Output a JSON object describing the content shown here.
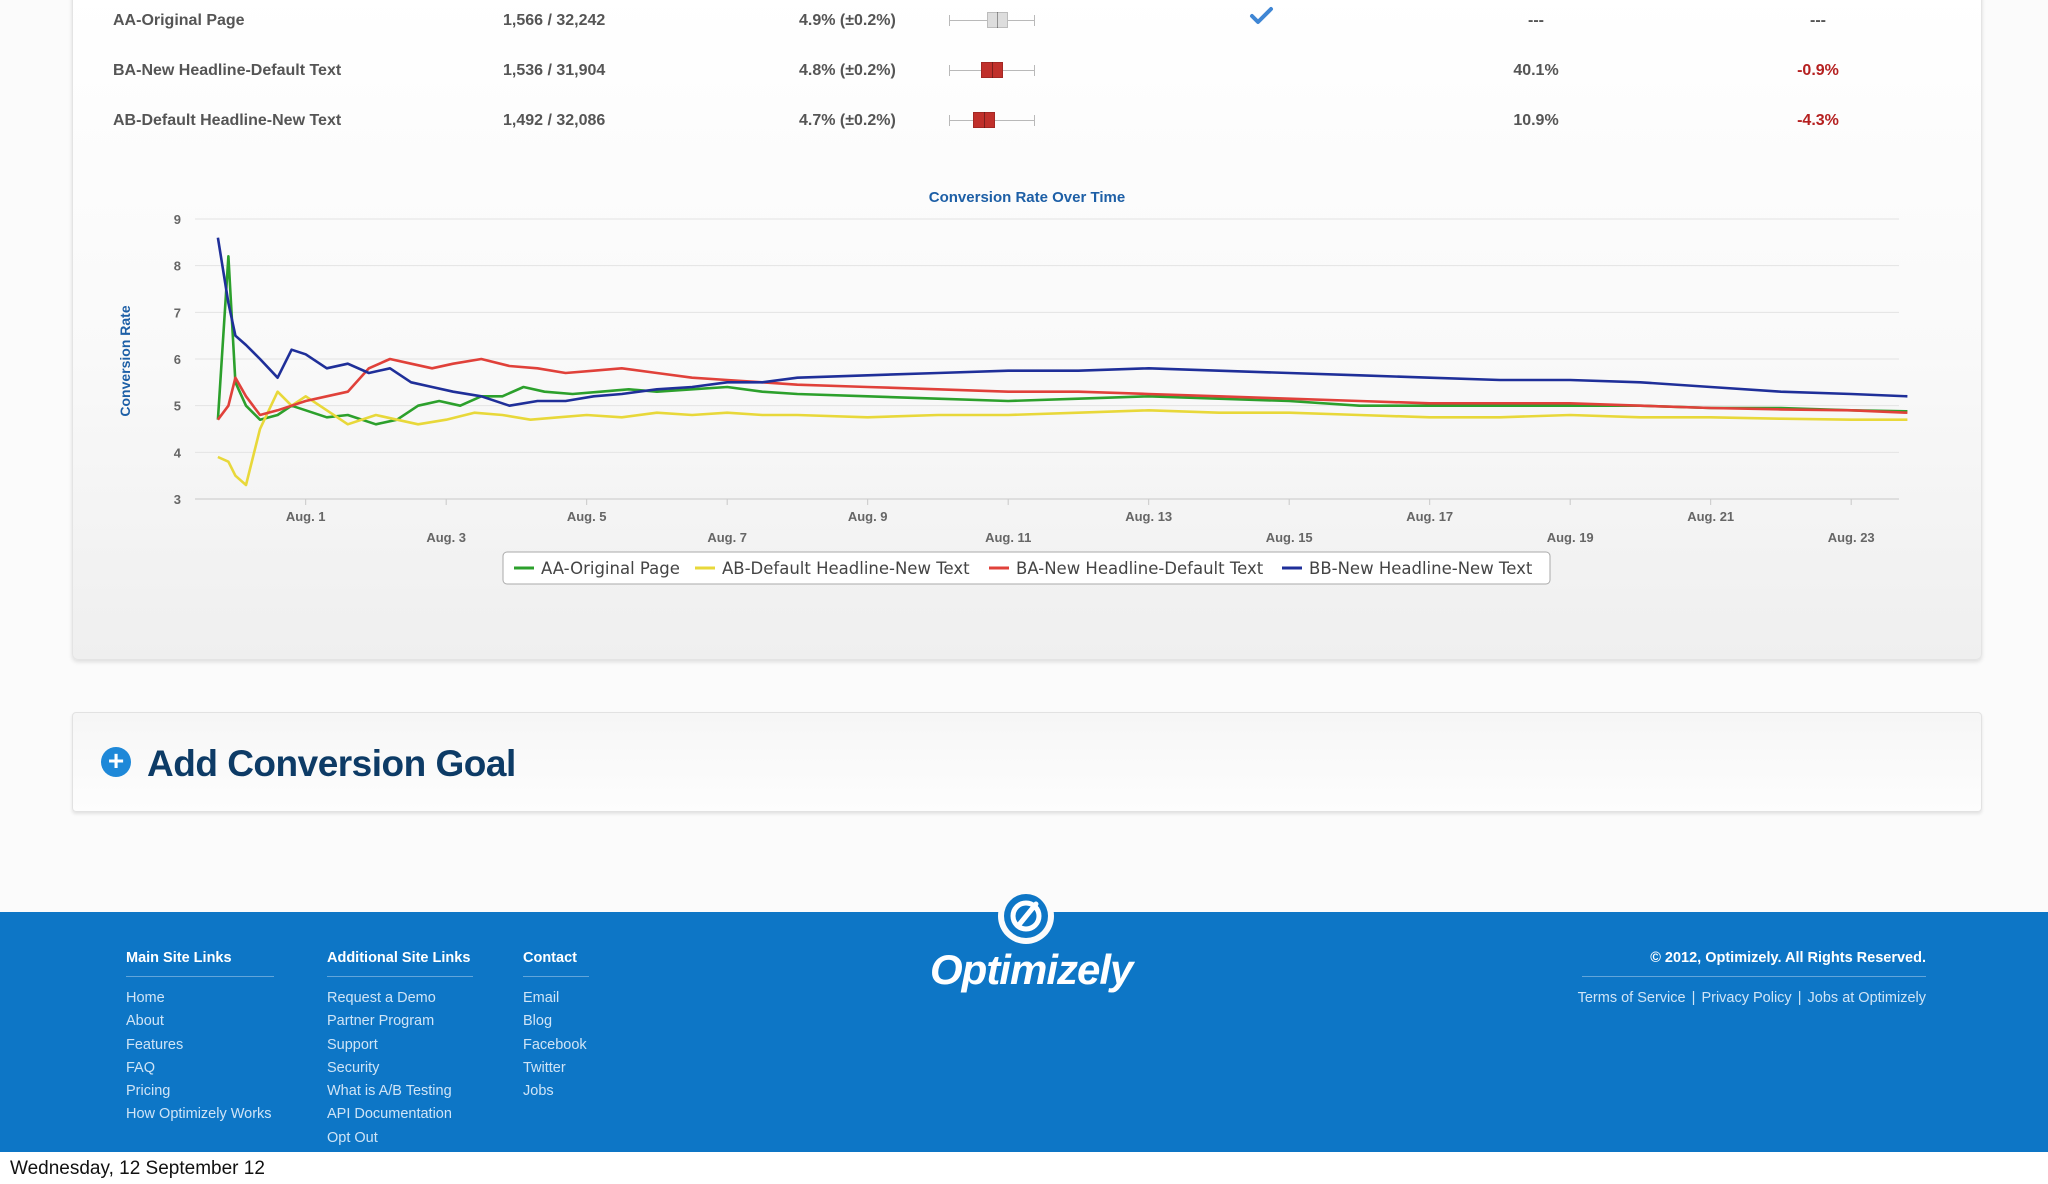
{
  "variations": [
    {
      "name": "AA-Original Page",
      "conversions": "1,566 / 32,242",
      "rate": "4.9% (±0.2%)",
      "interval": {
        "low": 4.7,
        "high": 5.1,
        "color": "#dddddd"
      },
      "baseline": true,
      "chance": "---",
      "improvement": "---",
      "improvement_negative": false
    },
    {
      "name": "BA-New Headline-Default Text",
      "conversions": "1,536 / 31,904",
      "rate": "4.8% (±0.2%)",
      "interval": {
        "low": 4.6,
        "high": 5.0,
        "color": "#c0302b"
      },
      "baseline": false,
      "chance": "40.1%",
      "improvement": "-0.9%",
      "improvement_negative": true
    },
    {
      "name": "AB-Default Headline-New Text",
      "conversions": "1,492 / 32,086",
      "rate": "4.7% (±0.2%)",
      "interval": {
        "low": 4.45,
        "high": 4.85,
        "color": "#c0302b"
      },
      "baseline": false,
      "chance": "10.9%",
      "improvement": "-4.3%",
      "improvement_negative": true
    }
  ],
  "interval_scale": {
    "min": 4.0,
    "max": 5.6
  },
  "icons": {
    "baseline": "checkmark-icon",
    "add_goal": "plus-circle-icon",
    "logo": "optimizely-logo-icon"
  },
  "chart_data": {
    "type": "line",
    "title": "Conversion Rate Over Time",
    "ylabel": "Conversion Rate",
    "xlabel": "",
    "ylim": [
      3,
      9
    ],
    "yticks": [
      3,
      4,
      5,
      6,
      7,
      8,
      9
    ],
    "xlim": [
      0,
      24
    ],
    "xticks_upper": [
      {
        "x": 1,
        "label": "Aug. 1"
      },
      {
        "x": 5,
        "label": "Aug. 5"
      },
      {
        "x": 9,
        "label": "Aug. 9"
      },
      {
        "x": 13,
        "label": "Aug. 13"
      },
      {
        "x": 17,
        "label": "Aug. 17"
      },
      {
        "x": 21,
        "label": "Aug. 21"
      }
    ],
    "xticks_lower": [
      {
        "x": 3,
        "label": "Aug. 3"
      },
      {
        "x": 7,
        "label": "Aug. 7"
      },
      {
        "x": 11,
        "label": "Aug. 11"
      },
      {
        "x": 15,
        "label": "Aug. 15"
      },
      {
        "x": 19,
        "label": "Aug. 19"
      },
      {
        "x": 23,
        "label": "Aug. 23"
      }
    ],
    "grid": true,
    "legend_position": "bottom-center",
    "series": [
      {
        "name": "AA-Original Page",
        "color": "#2ca02c",
        "points": [
          [
            -0.25,
            4.7
          ],
          [
            -0.1,
            8.2
          ],
          [
            0.0,
            5.5
          ],
          [
            0.15,
            5.0
          ],
          [
            0.35,
            4.7
          ],
          [
            0.6,
            4.8
          ],
          [
            0.8,
            5.0
          ],
          [
            1.0,
            4.9
          ],
          [
            1.3,
            4.75
          ],
          [
            1.6,
            4.8
          ],
          [
            2.0,
            4.6
          ],
          [
            2.3,
            4.7
          ],
          [
            2.6,
            5.0
          ],
          [
            2.9,
            5.1
          ],
          [
            3.2,
            5.0
          ],
          [
            3.5,
            5.2
          ],
          [
            3.8,
            5.2
          ],
          [
            4.1,
            5.4
          ],
          [
            4.4,
            5.3
          ],
          [
            4.8,
            5.25
          ],
          [
            5.2,
            5.3
          ],
          [
            5.6,
            5.35
          ],
          [
            6.0,
            5.3
          ],
          [
            6.5,
            5.35
          ],
          [
            7.0,
            5.4
          ],
          [
            7.5,
            5.3
          ],
          [
            8.0,
            5.25
          ],
          [
            9,
            5.2
          ],
          [
            10,
            5.15
          ],
          [
            11,
            5.1
          ],
          [
            12,
            5.15
          ],
          [
            13,
            5.2
          ],
          [
            14,
            5.15
          ],
          [
            15,
            5.1
          ],
          [
            16,
            5.0
          ],
          [
            17,
            5.0
          ],
          [
            18,
            5.0
          ],
          [
            19,
            5.0
          ],
          [
            20,
            5.0
          ],
          [
            21,
            4.95
          ],
          [
            22,
            4.95
          ],
          [
            23,
            4.9
          ],
          [
            23.8,
            4.88
          ]
        ]
      },
      {
        "name": "AB-Default Headline-New Text",
        "color": "#e8d83a",
        "points": [
          [
            -0.25,
            3.9
          ],
          [
            -0.1,
            3.8
          ],
          [
            0.0,
            3.5
          ],
          [
            0.15,
            3.3
          ],
          [
            0.35,
            4.5
          ],
          [
            0.6,
            5.3
          ],
          [
            0.8,
            5.0
          ],
          [
            1.0,
            5.2
          ],
          [
            1.3,
            4.9
          ],
          [
            1.6,
            4.6
          ],
          [
            2.0,
            4.8
          ],
          [
            2.3,
            4.7
          ],
          [
            2.6,
            4.6
          ],
          [
            3.0,
            4.7
          ],
          [
            3.4,
            4.85
          ],
          [
            3.8,
            4.8
          ],
          [
            4.2,
            4.7
          ],
          [
            4.6,
            4.75
          ],
          [
            5.0,
            4.8
          ],
          [
            5.5,
            4.75
          ],
          [
            6.0,
            4.85
          ],
          [
            6.5,
            4.8
          ],
          [
            7.0,
            4.85
          ],
          [
            7.5,
            4.8
          ],
          [
            8.0,
            4.8
          ],
          [
            9,
            4.75
          ],
          [
            10,
            4.8
          ],
          [
            11,
            4.8
          ],
          [
            12,
            4.85
          ],
          [
            13,
            4.9
          ],
          [
            14,
            4.85
          ],
          [
            15,
            4.85
          ],
          [
            16,
            4.8
          ],
          [
            17,
            4.75
          ],
          [
            18,
            4.75
          ],
          [
            19,
            4.8
          ],
          [
            20,
            4.75
          ],
          [
            21,
            4.75
          ],
          [
            22,
            4.72
          ],
          [
            23,
            4.7
          ],
          [
            23.8,
            4.7
          ]
        ]
      },
      {
        "name": "BA-New Headline-Default Text",
        "color": "#e0413a",
        "points": [
          [
            -0.25,
            4.7
          ],
          [
            -0.1,
            5.0
          ],
          [
            0.0,
            5.6
          ],
          [
            0.15,
            5.2
          ],
          [
            0.35,
            4.8
          ],
          [
            0.6,
            4.9
          ],
          [
            0.8,
            5.0
          ],
          [
            1.0,
            5.1
          ],
          [
            1.3,
            5.2
          ],
          [
            1.6,
            5.3
          ],
          [
            1.9,
            5.8
          ],
          [
            2.2,
            6.0
          ],
          [
            2.5,
            5.9
          ],
          [
            2.8,
            5.8
          ],
          [
            3.1,
            5.9
          ],
          [
            3.5,
            6.0
          ],
          [
            3.9,
            5.85
          ],
          [
            4.3,
            5.8
          ],
          [
            4.7,
            5.7
          ],
          [
            5.1,
            5.75
          ],
          [
            5.5,
            5.8
          ],
          [
            6.0,
            5.7
          ],
          [
            6.5,
            5.6
          ],
          [
            7.0,
            5.55
          ],
          [
            7.5,
            5.5
          ],
          [
            8.0,
            5.45
          ],
          [
            9,
            5.4
          ],
          [
            10,
            5.35
          ],
          [
            11,
            5.3
          ],
          [
            12,
            5.3
          ],
          [
            13,
            5.25
          ],
          [
            14,
            5.2
          ],
          [
            15,
            5.15
          ],
          [
            16,
            5.1
          ],
          [
            17,
            5.05
          ],
          [
            18,
            5.05
          ],
          [
            19,
            5.05
          ],
          [
            20,
            5.0
          ],
          [
            21,
            4.95
          ],
          [
            22,
            4.92
          ],
          [
            23,
            4.9
          ],
          [
            23.8,
            4.85
          ]
        ]
      },
      {
        "name": "BB-New Headline-New Text",
        "color": "#1f2f99",
        "points": [
          [
            -0.25,
            8.6
          ],
          [
            -0.1,
            7.2
          ],
          [
            0.0,
            6.5
          ],
          [
            0.15,
            6.3
          ],
          [
            0.35,
            6.0
          ],
          [
            0.6,
            5.6
          ],
          [
            0.8,
            6.2
          ],
          [
            1.0,
            6.1
          ],
          [
            1.3,
            5.8
          ],
          [
            1.6,
            5.9
          ],
          [
            1.9,
            5.7
          ],
          [
            2.2,
            5.8
          ],
          [
            2.5,
            5.5
          ],
          [
            2.8,
            5.4
          ],
          [
            3.1,
            5.3
          ],
          [
            3.5,
            5.2
          ],
          [
            3.9,
            5.0
          ],
          [
            4.3,
            5.1
          ],
          [
            4.7,
            5.1
          ],
          [
            5.1,
            5.2
          ],
          [
            5.5,
            5.25
          ],
          [
            6.0,
            5.35
          ],
          [
            6.5,
            5.4
          ],
          [
            7.0,
            5.5
          ],
          [
            7.5,
            5.5
          ],
          [
            8.0,
            5.6
          ],
          [
            9,
            5.65
          ],
          [
            10,
            5.7
          ],
          [
            11,
            5.75
          ],
          [
            12,
            5.75
          ],
          [
            13,
            5.8
          ],
          [
            14,
            5.75
          ],
          [
            15,
            5.7
          ],
          [
            16,
            5.65
          ],
          [
            17,
            5.6
          ],
          [
            18,
            5.55
          ],
          [
            19,
            5.55
          ],
          [
            20,
            5.5
          ],
          [
            21,
            5.4
          ],
          [
            22,
            5.3
          ],
          [
            23,
            5.25
          ],
          [
            23.8,
            5.2
          ]
        ]
      }
    ]
  },
  "add_goal": {
    "label": "Add Conversion Goal"
  },
  "footer": {
    "logo_text": "Optimizely",
    "columns": [
      {
        "id": "main",
        "title": "Main Site Links",
        "links": [
          "Home",
          "About",
          "Features",
          "FAQ",
          "Pricing",
          "How Optimizely Works"
        ]
      },
      {
        "id": "add",
        "title": "Additional Site Links",
        "links": [
          "Request a Demo",
          "Partner Program",
          "Support",
          "Security",
          "What is A/B Testing",
          "API Documentation",
          "Opt Out"
        ]
      },
      {
        "id": "contact",
        "title": "Contact",
        "links": [
          "Email",
          "Blog",
          "Facebook",
          "Twitter",
          "Jobs"
        ]
      }
    ],
    "copyright": "© 2012, Optimizely. All Rights Reserved.",
    "legal_links": [
      "Terms of Service",
      "Privacy Policy",
      "Jobs at Optimizely"
    ],
    "legal_separator": "|"
  },
  "date_caption": "Wednesday, 12 September 12"
}
